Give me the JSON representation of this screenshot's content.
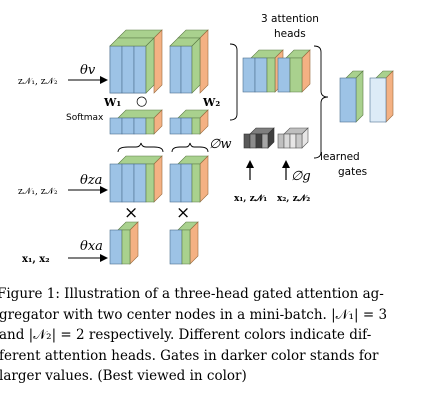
{
  "figure": {
    "input_labels": {
      "z_row1": "z𝒩₁, z𝒩₂",
      "z_row2": "z𝒩₁, z𝒩₂",
      "x_row": "x₁, x₂",
      "bottom_left": "x₁, z𝒩₁",
      "bottom_right": "x₂, z𝒩₂"
    },
    "params": {
      "theta_v": "θv",
      "theta_za": "θza",
      "theta_xa": "θxa",
      "phi_w": "∅w",
      "phi_g": "∅g"
    },
    "weights": {
      "w1": "W₁",
      "w2": "W₂"
    },
    "operators": {
      "dot": "○",
      "times": "×"
    },
    "texts": {
      "softmax": "Softmax",
      "attention_heads": [
        "3 attention",
        "heads"
      ],
      "learned_gates": [
        "learned",
        "gates"
      ]
    },
    "colors": {
      "blue": "#9dc3e6",
      "green": "#a9d18e",
      "orange": "#f4b183",
      "dark_gate": "#595959",
      "light_gate": "#d9d9d9"
    }
  },
  "caption": {
    "lines": [
      "Figure 1: Illustration of a three-head gated attention ag-",
      "gregator with two center nodes in a mini-batch. |𝒩₁| = 3",
      "and |𝒩₂| = 2 respectively. Different colors indicate dif-",
      "ferent attention heads. Gates in darker color stands for",
      "larger values. (Best viewed in color)"
    ]
  }
}
